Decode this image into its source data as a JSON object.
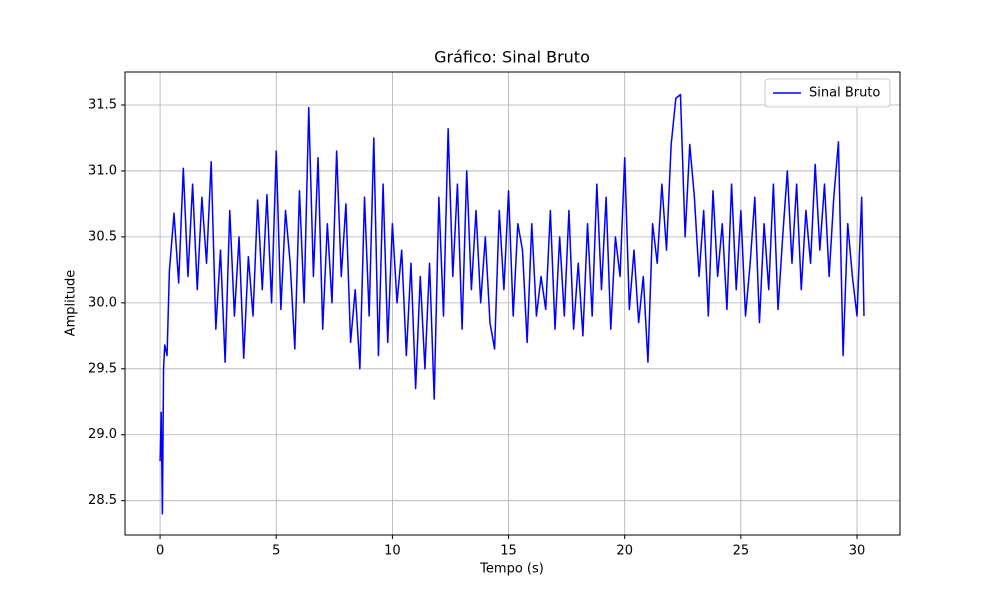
{
  "chart_data": {
    "type": "line",
    "title": "Gráfico: Sinal Bruto",
    "xlabel": "Tempo (s)",
    "ylabel": "Amplitude",
    "x": [
      0,
      0.05,
      0.1,
      0.15,
      0.2,
      0.3,
      0.4,
      0.6,
      0.8,
      1.0,
      1.2,
      1.4,
      1.6,
      1.8,
      2.0,
      2.2,
      2.4,
      2.6,
      2.8,
      3.0,
      3.2,
      3.4,
      3.6,
      3.8,
      4.0,
      4.2,
      4.4,
      4.6,
      4.8,
      5.0,
      5.2,
      5.4,
      5.6,
      5.8,
      6.0,
      6.2,
      6.4,
      6.6,
      6.8,
      7.0,
      7.2,
      7.4,
      7.6,
      7.8,
      8.0,
      8.2,
      8.4,
      8.6,
      8.8,
      9.0,
      9.2,
      9.4,
      9.6,
      9.8,
      10.0,
      10.2,
      10.4,
      10.6,
      10.8,
      11.0,
      11.2,
      11.4,
      11.6,
      11.8,
      12.0,
      12.2,
      12.4,
      12.6,
      12.8,
      13.0,
      13.2,
      13.4,
      13.6,
      13.8,
      14.0,
      14.2,
      14.4,
      14.6,
      14.8,
      15.0,
      15.2,
      15.4,
      15.6,
      15.8,
      16.0,
      16.2,
      16.4,
      16.6,
      16.8,
      17.0,
      17.2,
      17.4,
      17.6,
      17.8,
      18.0,
      18.2,
      18.4,
      18.6,
      18.8,
      19.0,
      19.2,
      19.4,
      19.6,
      19.8,
      20.0,
      20.2,
      20.4,
      20.6,
      20.8,
      21.0,
      21.2,
      21.4,
      21.6,
      21.8,
      22.0,
      22.2,
      22.4,
      22.6,
      22.8,
      23.0,
      23.2,
      23.4,
      23.6,
      23.8,
      24.0,
      24.2,
      24.4,
      24.6,
      24.8,
      25.0,
      25.2,
      25.4,
      25.6,
      25.8,
      26.0,
      26.2,
      26.4,
      26.6,
      26.8,
      27.0,
      27.2,
      27.4,
      27.6,
      27.8,
      28.0,
      28.2,
      28.4,
      28.6,
      28.8,
      29.0,
      29.2,
      29.4,
      29.6,
      29.8,
      30.0,
      30.2,
      30.3
    ],
    "series": [
      {
        "name": "Sinal Bruto",
        "color": "#0000ff",
        "values": [
          28.8,
          29.17,
          28.4,
          29.5,
          29.68,
          29.6,
          30.24,
          30.68,
          30.15,
          31.02,
          30.2,
          30.9,
          30.1,
          30.8,
          30.3,
          31.07,
          29.8,
          30.4,
          29.55,
          30.7,
          29.9,
          30.5,
          29.58,
          30.35,
          29.9,
          30.78,
          30.1,
          30.82,
          30.0,
          31.15,
          29.95,
          30.7,
          30.3,
          29.65,
          30.85,
          30.0,
          31.48,
          30.2,
          31.1,
          29.8,
          30.6,
          30.0,
          31.15,
          30.2,
          30.75,
          29.7,
          30.1,
          29.5,
          30.8,
          29.9,
          31.25,
          29.6,
          30.9,
          29.7,
          30.6,
          30.0,
          30.4,
          29.6,
          30.3,
          29.35,
          30.2,
          29.5,
          30.3,
          29.27,
          30.8,
          29.9,
          31.32,
          30.2,
          30.9,
          29.8,
          31.0,
          30.1,
          30.7,
          30.0,
          30.5,
          29.85,
          29.65,
          30.7,
          30.1,
          30.85,
          29.9,
          30.6,
          30.4,
          29.7,
          30.6,
          29.9,
          30.2,
          29.95,
          30.7,
          29.8,
          30.5,
          29.9,
          30.7,
          29.8,
          30.3,
          29.75,
          30.6,
          29.9,
          30.9,
          30.1,
          30.8,
          29.8,
          30.5,
          30.2,
          31.1,
          29.95,
          30.4,
          29.85,
          30.2,
          29.55,
          30.6,
          30.3,
          30.9,
          30.4,
          31.2,
          31.55,
          31.58,
          30.5,
          31.2,
          30.8,
          30.2,
          30.7,
          29.9,
          30.85,
          30.2,
          30.6,
          29.95,
          30.9,
          30.1,
          30.7,
          29.9,
          30.3,
          30.8,
          29.85,
          30.6,
          30.1,
          30.9,
          29.95,
          30.5,
          31.0,
          30.3,
          30.9,
          30.1,
          30.7,
          30.3,
          31.05,
          30.4,
          30.9,
          30.2,
          30.8,
          31.22,
          29.6,
          30.6,
          30.2,
          29.9,
          30.8,
          29.9
        ]
      }
    ],
    "xlim": [
      -1.51,
      31.85
    ],
    "ylim": [
      28.24,
      31.75
    ],
    "xticks": [
      0,
      5,
      10,
      15,
      20,
      25,
      30
    ],
    "yticks": [
      28.5,
      {
        "value": 29,
        "label": "29.0"
      },
      29.5,
      {
        "value": 30,
        "label": "30.0"
      },
      30.5,
      {
        "value": 31,
        "label": "31.0"
      },
      31.5
    ],
    "grid": true,
    "legend": "upper right"
  }
}
